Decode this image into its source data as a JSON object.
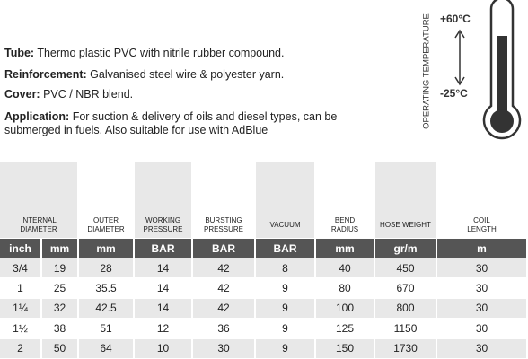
{
  "specs": [
    {
      "label": "Tube:",
      "text": "Thermo plastic PVC with nitrile rubber compound."
    },
    {
      "label": "Reinforcement:",
      "text": "Galvanised steel wire & polyester yarn."
    },
    {
      "label": "Cover:",
      "text": "PVC / NBR blend."
    },
    {
      "label": "Application:",
      "text": "For suction & delivery of oils and diesel types, can be submerged in fuels. Also suitable for use with AdBlue"
    }
  ],
  "thermometer": {
    "label": "OPERATING TEMPERATURE",
    "max": "+60°C",
    "min": "-25°C"
  },
  "table": {
    "headers": [
      "INTERNAL\nDIAMETER",
      "OUTER\nDIAMETER",
      "WORKING\nPRESSURE",
      "BURSTING\nPRESSURE",
      "VACUUM",
      "BEND\nRADIUS",
      "HOSE WEIGHT",
      "COIL\nLENGTH"
    ],
    "units": [
      "inch",
      "mm",
      "mm",
      "BAR",
      "BAR",
      "BAR",
      "mm",
      "gr/m",
      "m"
    ],
    "rows": [
      [
        "3/4",
        "19",
        "28",
        "14",
        "42",
        "8",
        "40",
        "450",
        "30"
      ],
      [
        "1",
        "25",
        "35.5",
        "14",
        "42",
        "9",
        "80",
        "670",
        "30"
      ],
      [
        "1¼",
        "32",
        "42.5",
        "14",
        "42",
        "9",
        "100",
        "800",
        "30"
      ],
      [
        "1½",
        "38",
        "51",
        "12",
        "36",
        "9",
        "125",
        "1150",
        "30"
      ],
      [
        "2",
        "50",
        "64",
        "10",
        "30",
        "9",
        "150",
        "1730",
        "30"
      ]
    ]
  }
}
